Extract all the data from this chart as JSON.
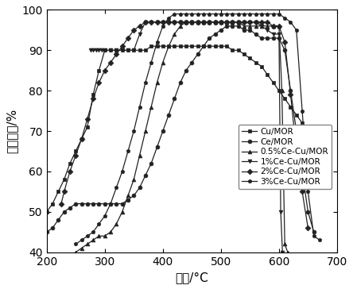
{
  "title": "",
  "xlabel": "温度/°C",
  "ylabel": "脱硝效率/%",
  "xlim": [
    200,
    700
  ],
  "ylim": [
    40,
    100
  ],
  "xticks": [
    200,
    300,
    400,
    500,
    600,
    700
  ],
  "yticks": [
    40,
    50,
    60,
    70,
    80,
    90,
    100
  ],
  "series": [
    {
      "label": "Cu/MOR",
      "marker": "s",
      "x": [
        200,
        210,
        220,
        230,
        240,
        250,
        260,
        270,
        280,
        290,
        300,
        310,
        320,
        330,
        340,
        350,
        360,
        370,
        380,
        390,
        400,
        410,
        420,
        430,
        440,
        450,
        460,
        470,
        480,
        490,
        500,
        510,
        520,
        530,
        540,
        550,
        560,
        570,
        580,
        590,
        600,
        610,
        620,
        630,
        640,
        650,
        660
      ],
      "y": [
        50,
        52,
        55,
        58,
        62,
        65,
        68,
        71,
        79,
        85,
        90,
        90,
        90,
        90,
        90,
        90,
        90,
        90,
        91,
        91,
        91,
        91,
        91,
        91,
        91,
        91,
        91,
        91,
        91,
        91,
        91,
        91,
        90,
        90,
        89,
        88,
        87,
        86,
        84,
        82,
        80,
        78,
        76,
        74,
        72,
        70,
        60
      ]
    },
    {
      "label": "Ce/MOR",
      "marker": "o",
      "x": [
        200,
        210,
        220,
        230,
        240,
        250,
        260,
        270,
        280,
        290,
        300,
        310,
        320,
        330,
        340,
        350,
        360,
        370,
        380,
        390,
        400,
        410,
        420,
        430,
        440,
        450,
        460,
        470,
        480,
        490,
        500,
        510,
        520,
        530,
        540,
        550,
        560,
        570,
        580,
        590,
        600,
        610,
        620,
        630,
        640,
        650,
        660
      ],
      "y": [
        45,
        46,
        48,
        50,
        51,
        52,
        52,
        52,
        52,
        52,
        52,
        52,
        52,
        52,
        53,
        54,
        56,
        59,
        62,
        66,
        70,
        74,
        78,
        82,
        85,
        87,
        89,
        91,
        93,
        94,
        95,
        96,
        96,
        96,
        95,
        95,
        94,
        93,
        93,
        93,
        93,
        90,
        80,
        70,
        60,
        50,
        45
      ]
    },
    {
      "label": "0.5%Ce-Cu/MOR",
      "marker": "^",
      "x": [
        250,
        260,
        270,
        280,
        290,
        300,
        310,
        320,
        330,
        340,
        350,
        360,
        370,
        380,
        390,
        400,
        410,
        420,
        430,
        440,
        450,
        460,
        470,
        480,
        490,
        500,
        510,
        520,
        530,
        540,
        550,
        560,
        570,
        580,
        590,
        600,
        605,
        610,
        615
      ],
      "y": [
        40,
        41,
        42,
        43,
        44,
        44,
        45,
        47,
        50,
        54,
        58,
        64,
        70,
        76,
        82,
        87,
        91,
        94,
        96,
        97,
        97,
        97,
        97,
        97,
        97,
        97,
        97,
        97,
        97,
        96,
        96,
        96,
        96,
        96,
        96,
        96,
        80,
        42,
        40
      ]
    },
    {
      "label": "1%Ce-Cu/MOR",
      "marker": "v",
      "x": [
        275,
        280,
        285,
        290,
        295,
        300,
        310,
        320,
        330,
        340,
        350,
        360,
        370,
        380,
        390,
        400,
        410,
        420,
        430,
        440,
        450,
        460,
        470,
        480,
        490,
        500,
        510,
        520,
        530,
        540,
        550,
        560,
        570,
        580,
        590,
        600,
        603,
        606
      ],
      "y": [
        90,
        90,
        90,
        90,
        90,
        90,
        90,
        90,
        90,
        90,
        90,
        94,
        97,
        97,
        97,
        97,
        97,
        97,
        97,
        97,
        97,
        97,
        97,
        97,
        97,
        97,
        97,
        97,
        97,
        97,
        97,
        97,
        96,
        95,
        94,
        94,
        50,
        40
      ]
    },
    {
      "label": "2%Ce-Cu/MOR",
      "marker": "D",
      "x": [
        225,
        230,
        240,
        250,
        260,
        270,
        280,
        290,
        300,
        310,
        320,
        330,
        340,
        350,
        360,
        370,
        380,
        390,
        400,
        410,
        420,
        430,
        440,
        450,
        460,
        470,
        480,
        490,
        500,
        510,
        520,
        530,
        540,
        550,
        560,
        570,
        580,
        590,
        600,
        610,
        620,
        630,
        640,
        650
      ],
      "y": [
        52,
        55,
        60,
        64,
        68,
        73,
        78,
        82,
        85,
        87,
        89,
        91,
        93,
        95,
        96,
        97,
        97,
        97,
        97,
        97,
        97,
        97,
        97,
        97,
        97,
        97,
        97,
        97,
        97,
        97,
        97,
        97,
        97,
        97,
        97,
        97,
        97,
        96,
        96,
        92,
        79,
        65,
        55,
        46
      ]
    },
    {
      "label": "3%Ce-Cu/MOR",
      "marker": "p",
      "x": [
        250,
        260,
        270,
        280,
        290,
        300,
        310,
        320,
        330,
        340,
        350,
        360,
        370,
        380,
        390,
        400,
        410,
        420,
        430,
        440,
        450,
        460,
        470,
        480,
        490,
        500,
        510,
        520,
        530,
        540,
        550,
        560,
        570,
        580,
        590,
        600,
        610,
        620,
        630,
        640,
        650,
        660,
        670
      ],
      "y": [
        42,
        43,
        44,
        45,
        47,
        49,
        52,
        56,
        60,
        65,
        70,
        76,
        82,
        87,
        92,
        96,
        98,
        99,
        99,
        99,
        99,
        99,
        99,
        99,
        99,
        99,
        99,
        99,
        99,
        99,
        99,
        99,
        99,
        99,
        99,
        99,
        98,
        97,
        95,
        75,
        55,
        44,
        43
      ]
    }
  ],
  "line_color": "#222222",
  "bg_color": "#ffffff",
  "legend_fontsize": 7.5,
  "axis_fontsize": 11,
  "tick_fontsize": 10,
  "marker_size": 3.5,
  "linewidth": 0.9
}
